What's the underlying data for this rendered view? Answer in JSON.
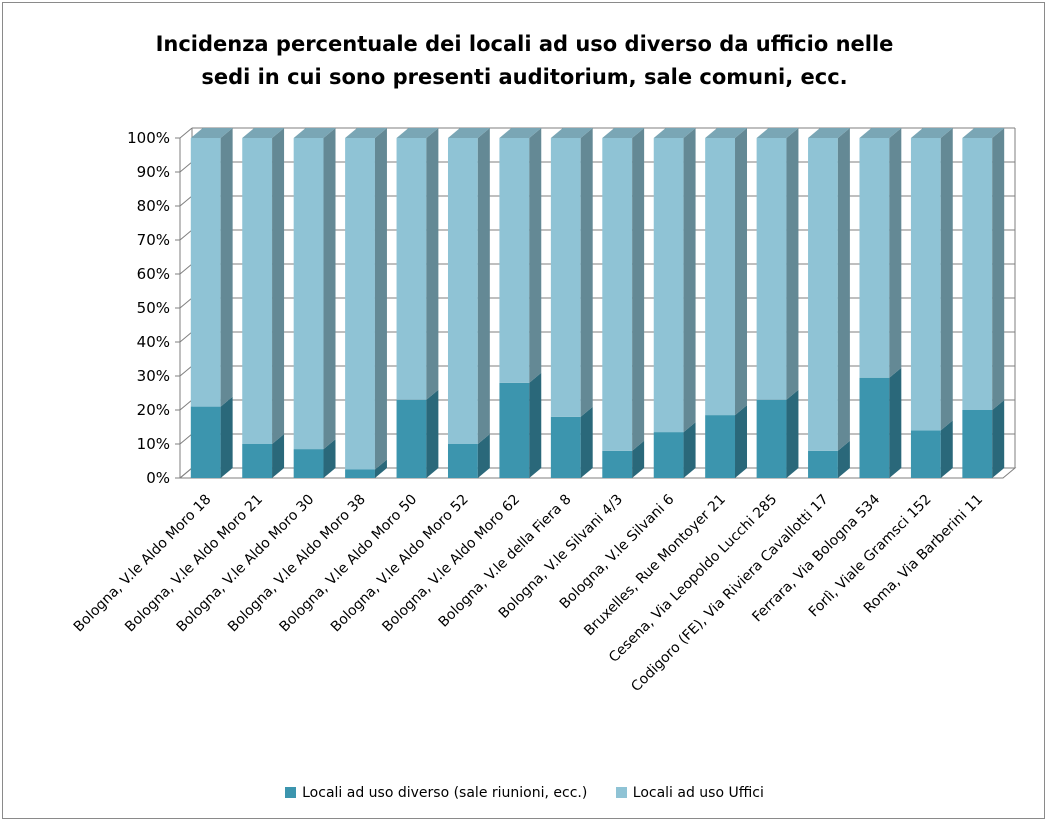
{
  "chart_data": {
    "type": "bar",
    "stacked": "percent",
    "title_lines": [
      "Incidenza percentuale dei locali ad uso diverso da ufficio nelle",
      "sedi in cui sono presenti auditorium, sale comuni, ecc."
    ],
    "categories": [
      "Bologna, V.le Aldo Moro 18",
      "Bologna, V.le Aldo Moro 21",
      "Bologna, V.le Aldo Moro 30",
      "Bologna, V.le Aldo Moro 38",
      "Bologna, V.le Aldo Moro 50",
      "Bologna, V.le Aldo Moro 52",
      "Bologna, V.le Aldo Moro 62",
      "Bologna, V.le della Fiera 8",
      "Bologna, V.le Silvani 4/3",
      "Bologna, V.le Silvani 6",
      "Bruxelles, Rue Montoyer 21",
      "Cesena, Via Leopoldo Lucchi 285",
      "Codigoro (FE), Via Riviera Cavallotti 17",
      "Ferrara, Via Bologna 534",
      "Forlì, Viale Gramsci 152",
      "Roma, Via Barberini 11"
    ],
    "series": [
      {
        "name": "Locali ad uso diverso (sale riunioni, ecc.)",
        "color": "#3c95ae",
        "values": [
          21,
          10,
          8.5,
          2.5,
          23,
          10,
          28,
          18,
          8,
          13.5,
          18.5,
          23,
          8,
          29.5,
          14,
          20
        ]
      },
      {
        "name": "Locali ad uso Uffici",
        "color": "#8fc3d5",
        "values": [
          79,
          90,
          91.5,
          97.5,
          77,
          90,
          72,
          82,
          92,
          86.5,
          81.5,
          77,
          92,
          70.5,
          86,
          80
        ]
      }
    ],
    "y_ticks": [
      "0%",
      "10%",
      "20%",
      "30%",
      "40%",
      "50%",
      "60%",
      "70%",
      "80%",
      "90%",
      "100%"
    ],
    "ylim": [
      0,
      100
    ],
    "grid": true,
    "legend_position": "bottom",
    "three_d": true
  }
}
